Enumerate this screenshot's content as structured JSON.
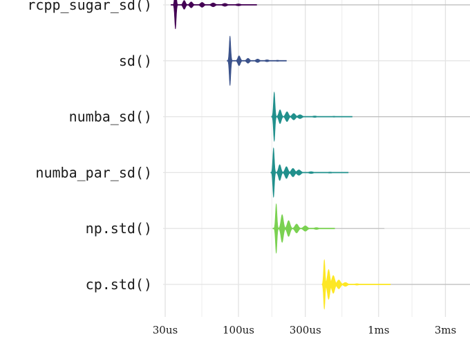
{
  "chart_data": {
    "type": "violin",
    "title": "",
    "xlabel": "",
    "ylabel": "",
    "x_scale": "log",
    "x_unit": "seconds",
    "xlim": [
      2e-05,
      0.0046
    ],
    "x_ticks": [
      {
        "value": 3e-05,
        "label": "30us"
      },
      {
        "value": 0.0001,
        "label": "100us"
      },
      {
        "value": 0.0003,
        "label": "300us"
      },
      {
        "value": 0.001,
        "label": "1ms"
      },
      {
        "value": 0.003,
        "label": "3ms"
      }
    ],
    "grid": true,
    "legend": "none",
    "categories": [
      "rcpp_sugar_sd()",
      "sd()",
      "numba_sd()",
      "numba_par_sd()",
      "np.std()",
      "cp.std()"
    ],
    "series": [
      {
        "category": "rcpp_sugar_sd()",
        "color": "#440154",
        "median": 3.6e-05,
        "min": 3.3e-05,
        "max": 0.0045,
        "bumps": [
          {
            "x": 3.55e-05,
            "h": 0.49
          },
          {
            "x": 4.1e-05,
            "h": 0.09
          },
          {
            "x": 4.6e-05,
            "h": 0.06
          },
          {
            "x": 5.5e-05,
            "h": 0.05
          },
          {
            "x": 6.6e-05,
            "h": 0.04
          },
          {
            "x": 8e-05,
            "h": 0.03
          },
          {
            "x": 0.0001,
            "h": 0.02
          }
        ]
      },
      {
        "category": "sd()",
        "color": "#3B528B",
        "median": 8.7e-05,
        "min": 8.3e-05,
        "max": 0.00022,
        "bumps": [
          {
            "x": 8.7e-05,
            "h": 0.5
          },
          {
            "x": 0.000101,
            "h": 0.1
          },
          {
            "x": 0.000117,
            "h": 0.05
          },
          {
            "x": 0.000137,
            "h": 0.035
          },
          {
            "x": 0.00016,
            "h": 0.02
          },
          {
            "x": 0.00019,
            "h": 0.012
          }
        ]
      },
      {
        "category": "numba_sd()",
        "color": "#21908C",
        "median": 0.00018,
        "min": 0.000172,
        "max": 0.0045,
        "bumps": [
          {
            "x": 0.00018,
            "h": 0.5
          },
          {
            "x": 0.000198,
            "h": 0.14
          },
          {
            "x": 0.000222,
            "h": 0.1
          },
          {
            "x": 0.000248,
            "h": 0.065
          },
          {
            "x": 0.000275,
            "h": 0.04
          },
          {
            "x": 0.00035,
            "h": 0.015
          },
          {
            "x": 0.00048,
            "h": 0.01
          }
        ]
      },
      {
        "category": "numba_par_sd()",
        "color": "#21908C",
        "median": 0.000178,
        "min": 0.00017,
        "max": 0.0045,
        "bumps": [
          {
            "x": 0.000178,
            "h": 0.5
          },
          {
            "x": 0.000197,
            "h": 0.16
          },
          {
            "x": 0.00022,
            "h": 0.12
          },
          {
            "x": 0.000245,
            "h": 0.085
          },
          {
            "x": 0.00027,
            "h": 0.055
          },
          {
            "x": 0.00033,
            "h": 0.02
          },
          {
            "x": 0.00045,
            "h": 0.012
          }
        ]
      },
      {
        "category": "np.std()",
        "color": "#7AD151",
        "median": 0.000185,
        "min": 0.000176,
        "max": 0.0011,
        "bumps": [
          {
            "x": 0.000186,
            "h": 0.5
          },
          {
            "x": 0.000205,
            "h": 0.28
          },
          {
            "x": 0.000228,
            "h": 0.16
          },
          {
            "x": 0.00026,
            "h": 0.09
          },
          {
            "x": 0.0003,
            "h": 0.055
          },
          {
            "x": 0.00036,
            "h": 0.02
          }
        ]
      },
      {
        "category": "cp.std()",
        "color": "#FDE725",
        "median": 0.00041,
        "min": 0.000395,
        "max": 0.0045,
        "bumps": [
          {
            "x": 0.00041,
            "h": 0.5
          },
          {
            "x": 0.00044,
            "h": 0.3
          },
          {
            "x": 0.000475,
            "h": 0.18
          },
          {
            "x": 0.00052,
            "h": 0.09
          },
          {
            "x": 0.00058,
            "h": 0.04
          },
          {
            "x": 0.0007,
            "h": 0.015
          },
          {
            "x": 0.0009,
            "h": 0.008
          }
        ]
      }
    ]
  }
}
